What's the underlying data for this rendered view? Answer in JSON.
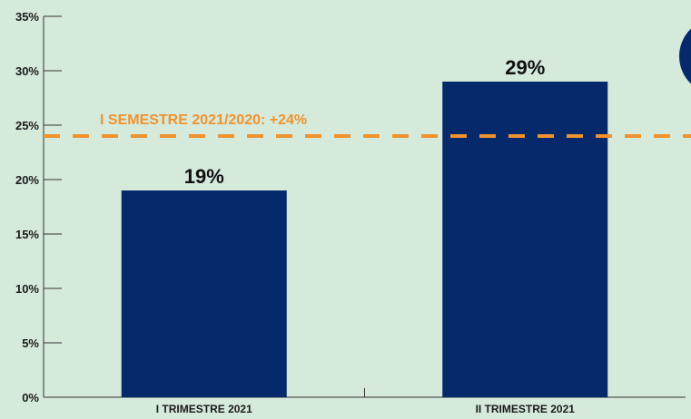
{
  "chart_data": {
    "type": "bar",
    "categories": [
      "I TRIMESTRE 2021",
      "II TRIMESTRE 2021"
    ],
    "values": [
      19,
      29
    ],
    "value_labels": [
      "19%",
      "29%"
    ],
    "ylim": [
      0,
      35
    ],
    "yticks": [
      0,
      5,
      10,
      15,
      20,
      25,
      30,
      35
    ],
    "ytick_labels": [
      "0%",
      "5%",
      "10%",
      "15%",
      "20%",
      "25%",
      "30%",
      "35%"
    ],
    "reference_line": {
      "value": 24,
      "label": "I SEMESTRE 2021/2020: +24%",
      "style": "dashed"
    },
    "grid": false,
    "colors": {
      "background": "#d5eadb",
      "bar": "#06296b",
      "reference": "#f0922e",
      "axis": "#333333",
      "accent_circle": "#06296b"
    }
  }
}
